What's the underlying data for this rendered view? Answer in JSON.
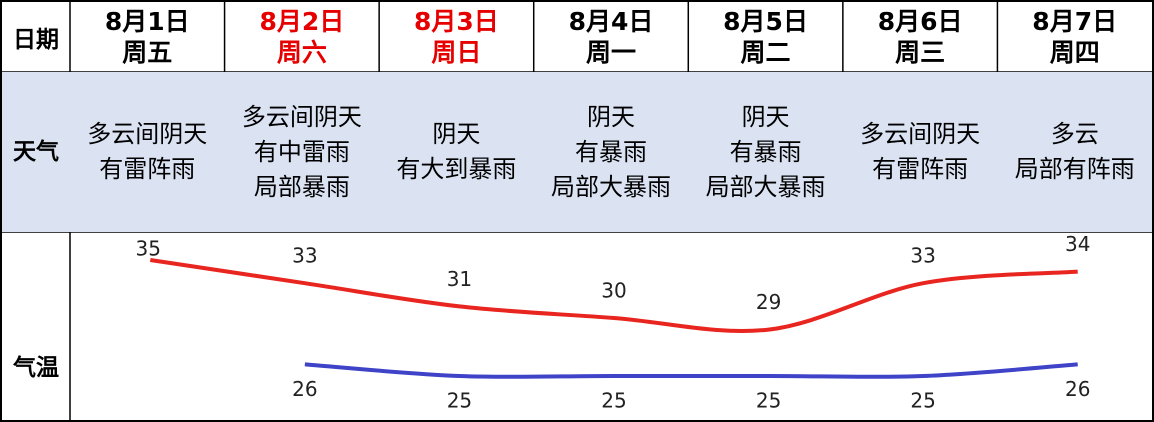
{
  "row_labels": [
    "日期",
    "天气",
    "气温"
  ],
  "days": [
    {
      "date": "8月1日",
      "weekday": "周五",
      "date_color": "#000000",
      "weather": [
        "多云间阴天",
        "有雷阵雨"
      ],
      "high": 35,
      "low": null
    },
    {
      "date": "8月2日",
      "weekday": "周六",
      "date_color": "#e60000",
      "weather": [
        "多云间阴天",
        "有中雷雨",
        "局部暴雨"
      ],
      "high": 33,
      "low": 26
    },
    {
      "date": "8月3日",
      "weekday": "周日",
      "date_color": "#e60000",
      "weather": [
        "阴天",
        "有大到暴雨"
      ],
      "high": 31,
      "low": 25
    },
    {
      "date": "8月4日",
      "weekday": "周一",
      "date_color": "#000000",
      "weather": [
        "阴天",
        "有暴雨",
        "局部大暴雨"
      ],
      "high": 30,
      "low": 25
    },
    {
      "date": "8月5日",
      "weekday": "周二",
      "date_color": "#000000",
      "weather": [
        "阴天",
        "有暴雨",
        "局部大暴雨"
      ],
      "high": 29,
      "low": 25
    },
    {
      "date": "8月6日",
      "weekday": "周三",
      "date_color": "#000000",
      "weather": [
        "多云间阴天",
        "有雷阵雨"
      ],
      "high": 33,
      "low": 25
    },
    {
      "date": "8月7日",
      "weekday": "周四",
      "date_color": "#000000",
      "weather": [
        "多云",
        "局部有阵雨"
      ],
      "high": 34,
      "low": 26
    }
  ],
  "high_color": "#e8251f",
  "low_color": "#3f43c8"
}
